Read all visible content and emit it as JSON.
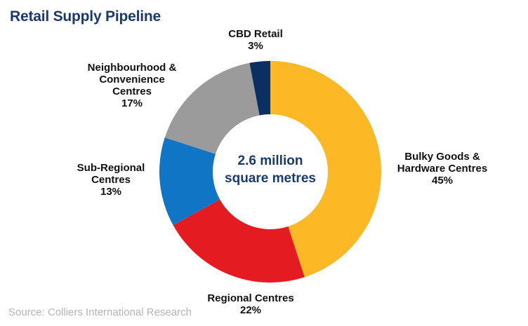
{
  "chart_data": {
    "type": "pie",
    "variant": "donut",
    "title": "Retail Supply Pipeline",
    "center_label": [
      "2.6 million",
      "square metres"
    ],
    "slices": [
      {
        "name": "Bulky Goods & Hardware Centres",
        "label_lines": [
          "Bulky Goods &",
          "Hardware Centres",
          "45%"
        ],
        "value": 45,
        "color": "#fdb825"
      },
      {
        "name": "Regional Centres",
        "label_lines": [
          "Regional Centres",
          "22%"
        ],
        "value": 22,
        "color": "#e41b21"
      },
      {
        "name": "Sub-Regional Centres",
        "label_lines": [
          "Sub-Regional",
          "Centres",
          "13%"
        ],
        "value": 13,
        "color": "#1075c4"
      },
      {
        "name": "Neighbourhood & Convenience Centres",
        "label_lines": [
          "Neighbourhood &",
          "Convenience",
          "Centres",
          "17%"
        ],
        "value": 17,
        "color": "#9b9b9b"
      },
      {
        "name": "CBD Retail",
        "label_lines": [
          "CBD Retail",
          "3%"
        ],
        "value": 3,
        "color": "#0c2f63"
      }
    ],
    "start_angle_deg": 0,
    "direction": "clockwise"
  },
  "source": "Source: Colliers International Research"
}
